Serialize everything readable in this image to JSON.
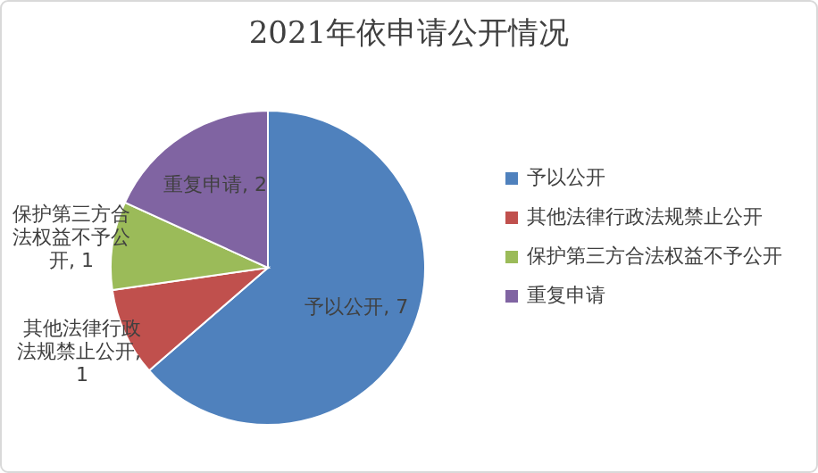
{
  "chart_data": {
    "type": "pie",
    "title": "2021年依申请公开情况",
    "categories": [
      "予以公开",
      "其他法律行政法规禁止公开",
      "保护第三方合法权益不予公开",
      "重复申请"
    ],
    "values": [
      7,
      1,
      1,
      2
    ],
    "colors": [
      "#4f81bd",
      "#c0504d",
      "#9bbb59",
      "#8064a2"
    ],
    "value_labels": [
      "予以公开, 7",
      "其他法律行政法规禁止公开, 1",
      "保护第三方合法权益不予公开, 1",
      "重复申请, 2"
    ],
    "legend": "right"
  }
}
